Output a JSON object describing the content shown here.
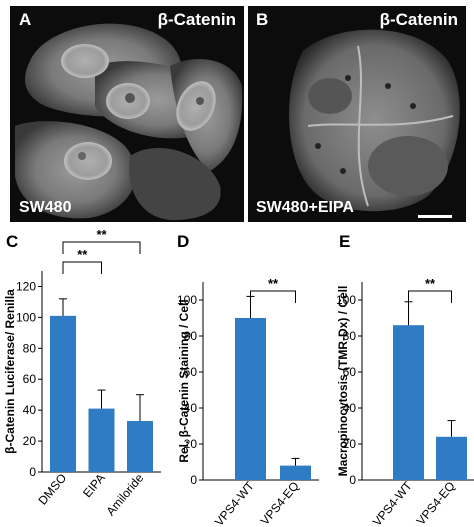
{
  "colors": {
    "bar": "#2f7bc4",
    "micrograph_bg": "#0c0c0c",
    "overlay_text": "#ffffff"
  },
  "micrographs": [
    {
      "letter": "A",
      "title": "β-Catenin",
      "condition": "SW480"
    },
    {
      "letter": "B",
      "title": "β-Catenin",
      "condition": "SW480+EIPA",
      "scale_bar": true
    }
  ],
  "chart_data": [
    {
      "letter": "C",
      "type": "bar",
      "categories": [
        "DMSO",
        "EIPA",
        "Amiloride"
      ],
      "values": [
        101,
        41,
        33
      ],
      "errors": [
        11,
        12,
        17
      ],
      "ylabel": "β-Catenin Luciferase/ Renilla",
      "ylim": [
        0,
        130
      ],
      "yticks": [
        0,
        20,
        40,
        60,
        80,
        100,
        120
      ],
      "tick_labels": [
        "0",
        "20",
        "40",
        "60",
        "80",
        "100",
        "120"
      ],
      "significance": [
        {
          "from": 0,
          "to": 1,
          "label": "**"
        },
        {
          "from": 0,
          "to": 2,
          "label": "**"
        }
      ],
      "grid": false
    },
    {
      "letter": "D",
      "type": "bar",
      "categories": [
        "VPS4-WT",
        "VPS4-EQ"
      ],
      "values": [
        90,
        8
      ],
      "errors": [
        12,
        4
      ],
      "ylabel": "Rel. β-Catenin Staining / Cell",
      "ylim": [
        0,
        110
      ],
      "yticks": [
        0,
        20,
        40,
        60,
        80,
        100
      ],
      "tick_labels": [
        "0",
        "20",
        "40",
        "60",
        "80",
        "100"
      ],
      "significance": [
        {
          "from": 0,
          "to": 1,
          "label": "**"
        }
      ],
      "grid": false
    },
    {
      "letter": "E",
      "type": "bar",
      "categories": [
        "VPS4-WT",
        "VPS4-EQ"
      ],
      "values": [
        86,
        24
      ],
      "errors": [
        13,
        9
      ],
      "ylabel": "Macropinocytosis (TMR-Dx) / Cell",
      "ylim": [
        0,
        110
      ],
      "yticks": [
        0,
        20,
        40,
        60,
        80,
        100
      ],
      "tick_labels": [
        "0",
        "20",
        "40",
        "60",
        "80",
        "100"
      ],
      "significance": [
        {
          "from": 0,
          "to": 1,
          "label": "**"
        }
      ],
      "grid": false
    }
  ]
}
